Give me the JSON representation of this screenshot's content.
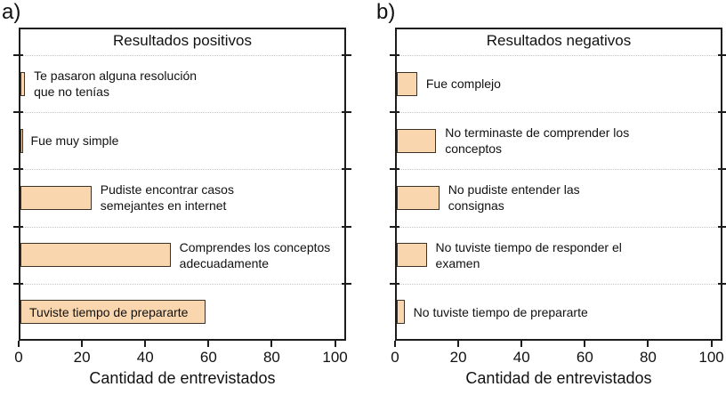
{
  "colors": {
    "bar_fill": "#FAD6AE",
    "bar_border": "#3C3228",
    "frame": "#1C1C1C",
    "gridline": "#C6C6C6",
    "text": "#111111",
    "background": "#FFFFFF"
  },
  "chart_data": [
    {
      "type": "bar",
      "orientation": "horizontal",
      "panel_label": "a)",
      "title": "Resultados positivos",
      "xlabel": "Cantidad de entrevistados",
      "categories": [
        "Te pasaron alguna resolución\nque no tenías",
        "Fue muy simple",
        "Pudiste encontrar casos\nsemejantes en internet",
        "Comprendes los conceptos\nadecuadamente",
        "Tuviste tiempo de prepararte"
      ],
      "values": [
        2,
        1,
        23,
        48,
        59
      ],
      "label_inside": [
        false,
        false,
        false,
        false,
        true
      ],
      "x_ticks": [
        "0",
        "20",
        "40",
        "60",
        "80",
        "100"
      ],
      "xlim": [
        0,
        103.5
      ],
      "grid": "dotted-category-separators",
      "legend": "none"
    },
    {
      "type": "bar",
      "orientation": "horizontal",
      "panel_label": "b)",
      "title": "Resultados negativos",
      "xlabel": "Cantidad de entrevistados",
      "categories": [
        "Fue complejo",
        "No terminaste de comprender los\nconceptos",
        "No pudiste entender las\nconsignas",
        "No tuviste tiempo de responder el\nexamen",
        "No tuviste tiempo de prepararte"
      ],
      "values": [
        7,
        13,
        14,
        10,
        3
      ],
      "label_inside": [
        false,
        false,
        false,
        false,
        false
      ],
      "x_ticks": [
        "0",
        "20",
        "40",
        "60",
        "80",
        "100"
      ],
      "xlim": [
        0,
        103.5
      ],
      "grid": "dotted-category-separators",
      "legend": "none"
    }
  ]
}
